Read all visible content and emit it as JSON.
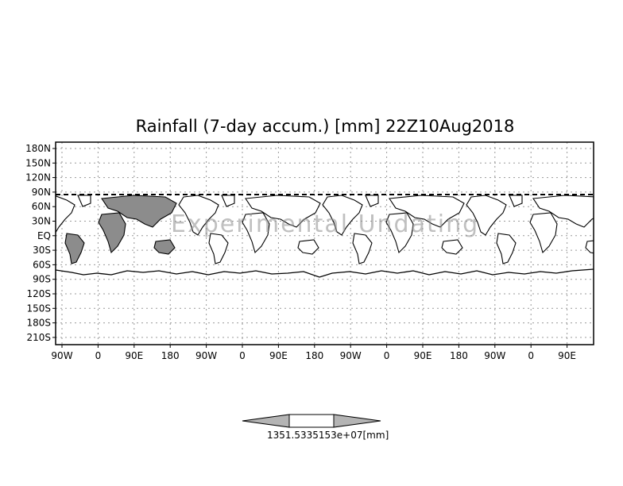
{
  "title": "Rainfall (7-day accum.) [mm] 22Z10Aug2018",
  "watermark": "Experimental Undating",
  "map": {
    "lat_ticks": [
      "180N",
      "150N",
      "120N",
      "90N",
      "60N",
      "30N",
      "EQ",
      "30S",
      "60S",
      "90S",
      "120S",
      "150S",
      "180S",
      "210S"
    ],
    "lon_ticks": [
      "90W",
      "0",
      "90E",
      "180",
      "90W",
      "0",
      "90E",
      "180",
      "90W",
      "0",
      "90E",
      "180",
      "90W",
      "0",
      "90E"
    ],
    "grid": true,
    "repeat_copies": 4
  },
  "colorbar": {
    "label": "1351.5335153e+07[mm]",
    "unit": "[mm]",
    "left_color": "#b4b4b4",
    "mid_color": "#ffffff",
    "right_color": "#b4b4b4"
  },
  "colors": {
    "shaded_land": "#8c8c8c",
    "frame": "#000000",
    "grid": "#9a9a9a"
  }
}
